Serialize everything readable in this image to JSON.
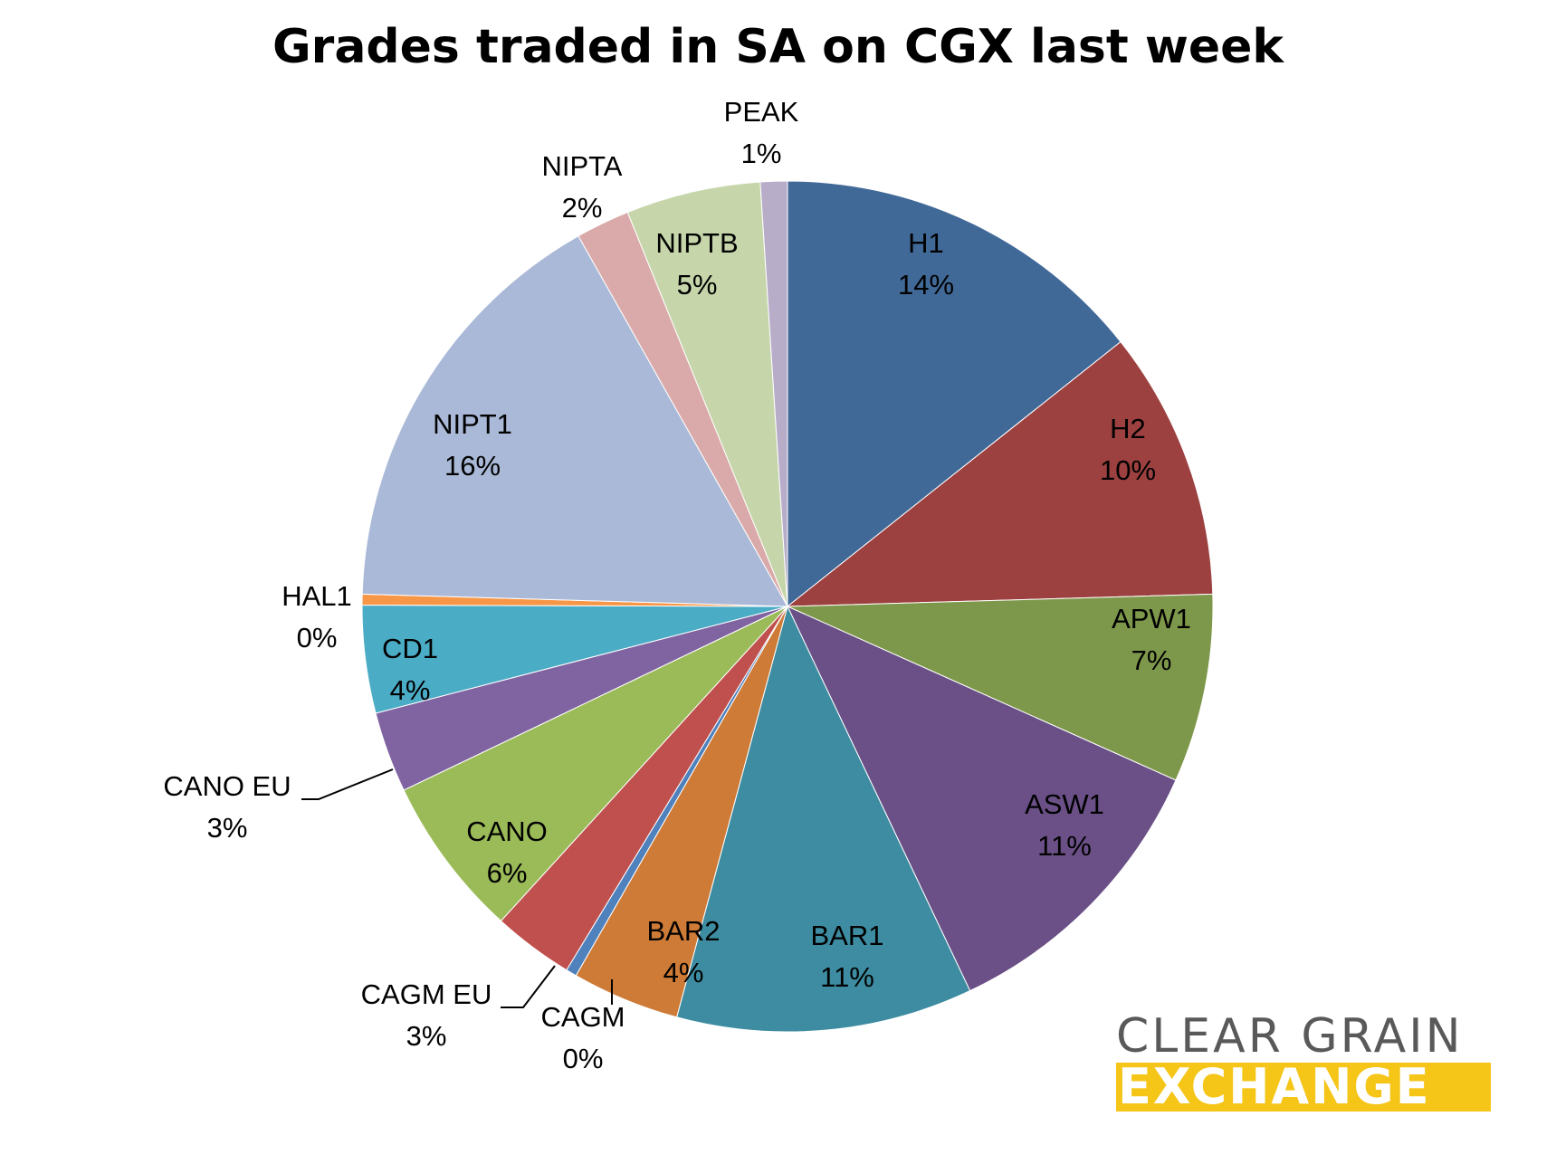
{
  "chart_data": {
    "type": "pie",
    "title": "Grades traded in SA on CGX last week",
    "slices": [
      {
        "name": "H1",
        "value": 14,
        "label": "14%",
        "color": "#416998"
      },
      {
        "name": "H2",
        "value": 10,
        "label": "10%",
        "color": "#9c4140"
      },
      {
        "name": "APW1",
        "value": 7,
        "label": "7%",
        "color": "#7e984b"
      },
      {
        "name": "ASW1",
        "value": 11,
        "label": "11%",
        "color": "#6a5086"
      },
      {
        "name": "BAR1",
        "value": 11,
        "label": "11%",
        "color": "#3d8ca1"
      },
      {
        "name": "BAR2",
        "value": 4,
        "label": "4%",
        "color": "#cd7b37"
      },
      {
        "name": "CAGM",
        "value": 0.4,
        "label": "0%",
        "color": "#4f81bd"
      },
      {
        "name": "CAGM EU",
        "value": 3,
        "label": "3%",
        "color": "#c0504d"
      },
      {
        "name": "CANO",
        "value": 6,
        "label": "6%",
        "color": "#9bbb59"
      },
      {
        "name": "CANO EU",
        "value": 3,
        "label": "3%",
        "color": "#8064a2"
      },
      {
        "name": "CD1",
        "value": 4,
        "label": "4%",
        "color": "#4bacc6"
      },
      {
        "name": "HAL1",
        "value": 0.4,
        "label": "0%",
        "color": "#f79646"
      },
      {
        "name": "NIPT1",
        "value": 16,
        "label": "16%",
        "color": "#aab9d7"
      },
      {
        "name": "NIPTA",
        "value": 2,
        "label": "2%",
        "color": "#d9aaa9"
      },
      {
        "name": "NIPTB",
        "value": 5,
        "label": "5%",
        "color": "#c6d6aa"
      },
      {
        "name": "PEAK",
        "value": 1,
        "label": "1%",
        "color": "#b8adc9"
      }
    ]
  },
  "logo": {
    "line1": "CLEAR GRAIN",
    "line2": "EXCHANGE",
    "colors": {
      "line1": "#595959",
      "band": "#f5c518",
      "line2": "#ffffff"
    }
  }
}
